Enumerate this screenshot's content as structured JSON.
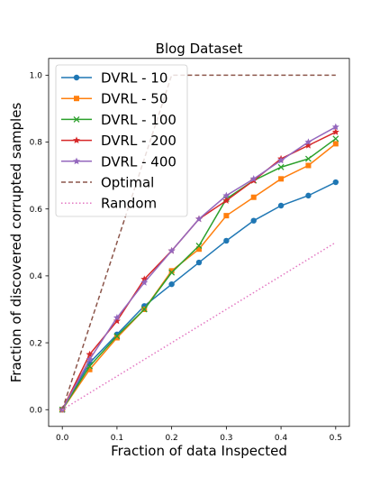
{
  "chart_data": {
    "type": "line",
    "title": "Blog Dataset",
    "xlabel": "Fraction of data Inspected",
    "ylabel": "Fraction of discovered corrupted samples",
    "xlim": [
      -0.025,
      0.525
    ],
    "ylim": [
      -0.05,
      1.05
    ],
    "xticks": [
      "0.0",
      "0.1",
      "0.2",
      "0.3",
      "0.4",
      "0.5"
    ],
    "yticks": [
      "0.0",
      "0.2",
      "0.4",
      "0.6",
      "0.8",
      "1.0"
    ],
    "grid": false,
    "legend": "top-left",
    "x": [
      0.0,
      0.05,
      0.1,
      0.15,
      0.2,
      0.25,
      0.3,
      0.35,
      0.4,
      0.45,
      0.5
    ],
    "series": [
      {
        "name": "DVRL - 10",
        "color": "#1f77b4",
        "marker": "circle",
        "style": "solid",
        "values": [
          0.0,
          0.14,
          0.225,
          0.31,
          0.375,
          0.44,
          0.505,
          0.565,
          0.61,
          0.64,
          0.68
        ]
      },
      {
        "name": "DVRL - 50",
        "color": "#ff7f0e",
        "marker": "square",
        "style": "solid",
        "values": [
          0.0,
          0.12,
          0.215,
          0.3,
          0.415,
          0.48,
          0.58,
          0.635,
          0.69,
          0.73,
          0.795
        ]
      },
      {
        "name": "DVRL - 100",
        "color": "#2ca02c",
        "marker": "x",
        "style": "solid",
        "values": [
          0.0,
          0.13,
          0.22,
          0.3,
          0.41,
          0.49,
          0.63,
          0.685,
          0.725,
          0.75,
          0.81
        ]
      },
      {
        "name": "DVRL - 200",
        "color": "#d62728",
        "marker": "star",
        "style": "solid",
        "values": [
          0.0,
          0.165,
          0.265,
          0.39,
          0.475,
          0.57,
          0.625,
          0.685,
          0.75,
          0.79,
          0.83
        ]
      },
      {
        "name": "DVRL - 400",
        "color": "#9467bd",
        "marker": "star",
        "style": "solid",
        "values": [
          0.0,
          0.15,
          0.275,
          0.38,
          0.475,
          0.57,
          0.64,
          0.69,
          0.745,
          0.8,
          0.845
        ]
      },
      {
        "name": "Optimal",
        "color": "#8c564b",
        "marker": "none",
        "style": "dashed",
        "x": [
          0.0,
          0.2,
          0.5
        ],
        "values": [
          0.0,
          1.0,
          1.0
        ]
      },
      {
        "name": "Random",
        "color": "#e377c2",
        "marker": "none",
        "style": "dotted",
        "x": [
          0.0,
          0.5
        ],
        "values": [
          0.0,
          0.5
        ]
      }
    ]
  }
}
